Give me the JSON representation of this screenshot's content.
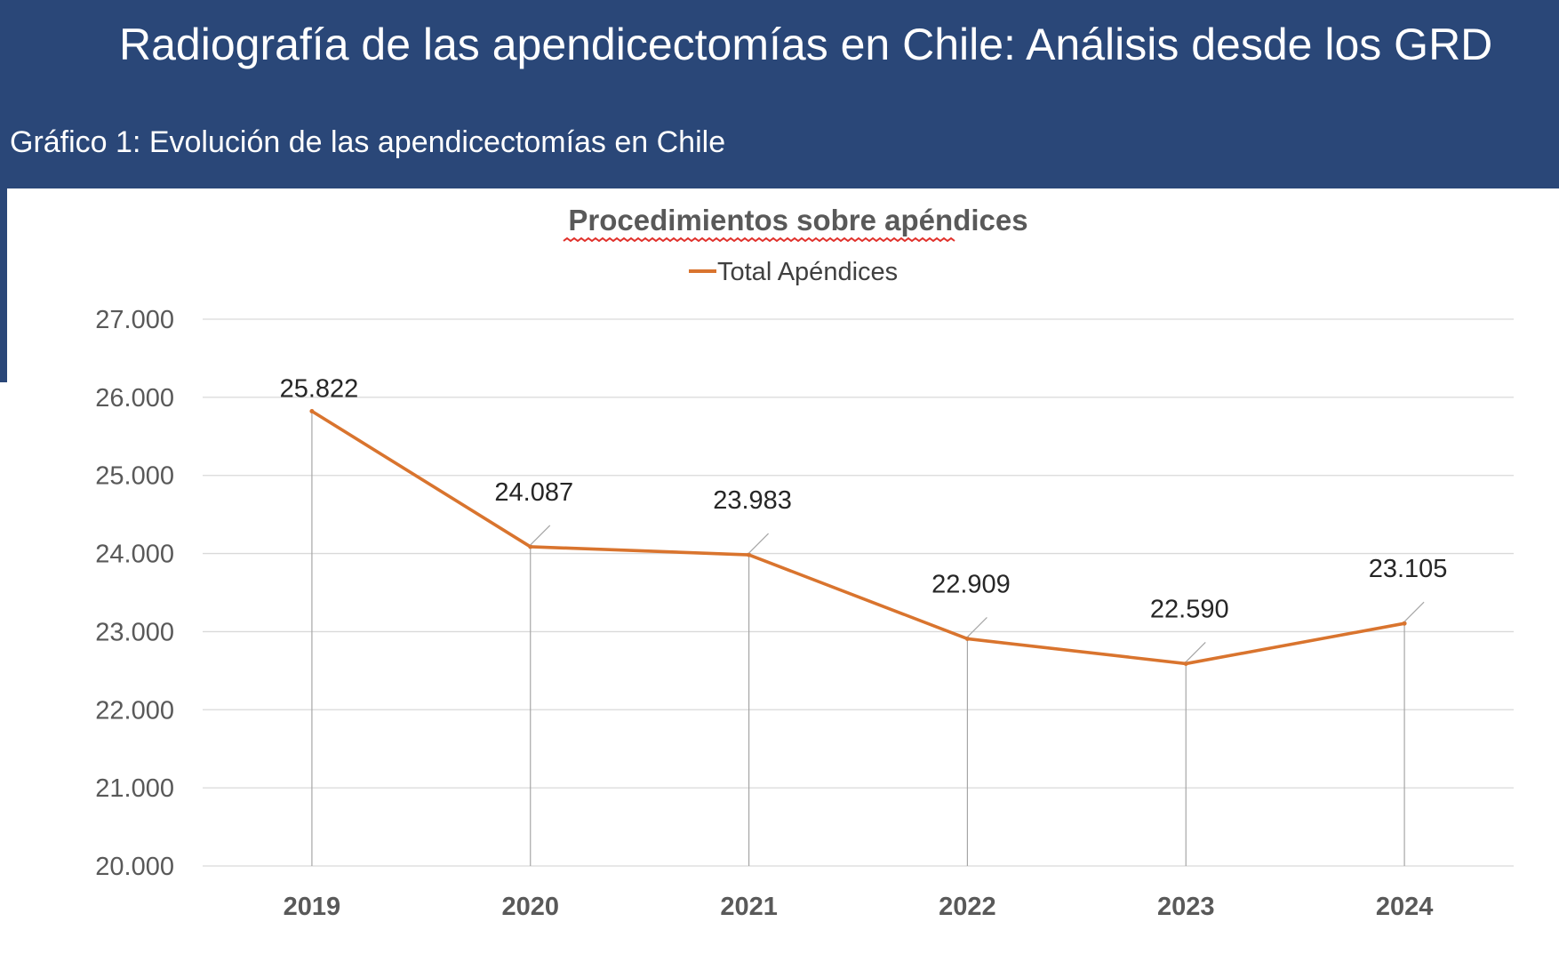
{
  "header": {
    "title": "Radiografía de las apendicectomías en Chile: Análisis desde los GRD",
    "subtitle": "Gráfico 1: Evolución de las apendicectomías en Chile"
  },
  "colors": {
    "banner": "#2a4778",
    "series": "#d9742e",
    "grid": "#d9d9d9",
    "leader": "#a6a6a6"
  },
  "chart_data": {
    "type": "line",
    "title": "Procedimientos sobre apéndices",
    "xlabel": "",
    "ylabel": "",
    "categories": [
      "2019",
      "2020",
      "2021",
      "2022",
      "2023",
      "2024"
    ],
    "series": [
      {
        "name": "Total Apéndices",
        "values": [
          25822,
          24087,
          23983,
          22909,
          22590,
          23105
        ],
        "labels": [
          "25.822",
          "24.087",
          "23.983",
          "22.909",
          "22.590",
          "23.105"
        ]
      }
    ],
    "ylim": [
      20000,
      27000
    ],
    "yticks": [
      20000,
      21000,
      22000,
      23000,
      24000,
      25000,
      26000,
      27000
    ],
    "ytick_labels": [
      "20.000",
      "21.000",
      "22.000",
      "23.000",
      "24.000",
      "25.000",
      "26.000",
      "27.000"
    ],
    "grid": true,
    "legend": "top-center"
  }
}
